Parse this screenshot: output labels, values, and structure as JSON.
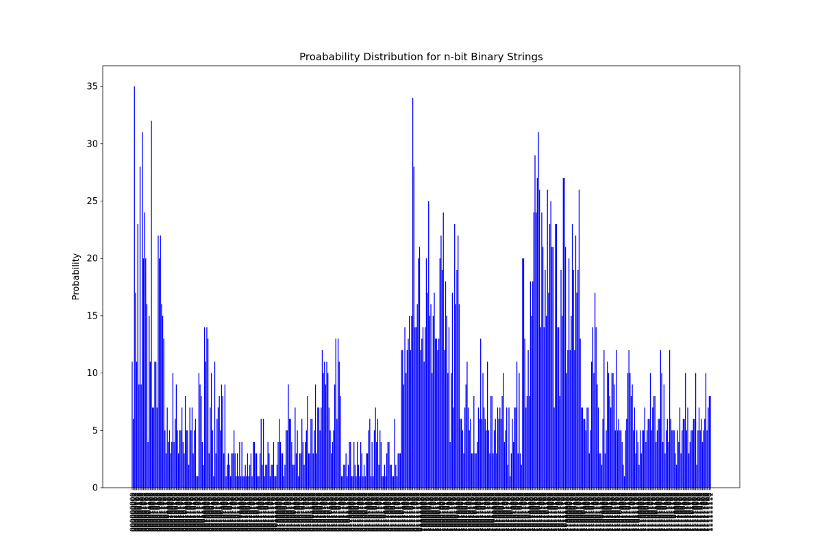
{
  "chart_data": {
    "type": "bar",
    "title": "Proabability Distribution for n-bit Binary Strings",
    "ylabel": "Probability",
    "color": "blue",
    "ylim": [
      0,
      36.8
    ],
    "yticks": [
      0,
      5,
      10,
      15,
      20,
      25,
      30,
      35
    ],
    "grid": false,
    "categories": [
      "000000000",
      "000000001",
      "000000010",
      "000000011",
      "000000100",
      "000000101",
      "000000110",
      "000000111",
      "000001000",
      "000001001",
      "000001010",
      "000001011",
      "000001100",
      "000001101",
      "000001110",
      "000001111",
      "000010000",
      "000010001",
      "000010010",
      "000010011",
      "000010100",
      "000010101",
      "000010110",
      "000010111",
      "000011000",
      "000011001",
      "000011010",
      "000011011",
      "000011100",
      "000011101",
      "000011110",
      "000011111",
      "000100000",
      "000100001",
      "000100010",
      "000100011",
      "000100100",
      "000100101",
      "000100110",
      "000100111",
      "000101000",
      "000101001",
      "000101010",
      "000101011",
      "000101100",
      "000101101",
      "000101110",
      "000101111",
      "000110000",
      "000110001",
      "000110010",
      "000110011",
      "000110100",
      "000110101",
      "000110110",
      "000110111",
      "000111000",
      "000111001",
      "000111010",
      "000111011",
      "000111100",
      "000111101",
      "000111110",
      "000111111",
      "001000000",
      "001000001",
      "001000010",
      "001000011",
      "001000100",
      "001000101",
      "001000110",
      "001000111",
      "001001000",
      "001001001",
      "001001010",
      "001001011",
      "001001100",
      "001001101",
      "001001110",
      "001001111",
      "001010000",
      "001010001",
      "001010010",
      "001010011",
      "001010100",
      "001010101",
      "001010110",
      "001010111",
      "001011000",
      "001011001",
      "001011010",
      "001011011",
      "001011100",
      "001011101",
      "001011110",
      "001011111",
      "001100000",
      "001100001",
      "001100010",
      "001100011",
      "001100100",
      "001100101",
      "001100110",
      "001100111",
      "001101000",
      "001101001",
      "001101010",
      "001101011",
      "001101100",
      "001101101",
      "001101110",
      "001101111",
      "001110000",
      "001110001",
      "001110010",
      "001110011",
      "001110100",
      "001110101",
      "001110110",
      "001110111",
      "001111000",
      "001111001",
      "001111010",
      "001111011",
      "001111100",
      "001111101",
      "001111110",
      "001111111",
      "010000000",
      "010000001",
      "010000010",
      "010000011",
      "010000100",
      "010000101",
      "010000110",
      "010000111",
      "010001000",
      "010001001",
      "010001010",
      "010001011",
      "010001100",
      "010001101",
      "010001110",
      "010001111",
      "010010000",
      "010010001",
      "010010010",
      "010010011",
      "010010100",
      "010010101",
      "010010110",
      "010010111",
      "010011000",
      "010011001",
      "010011010",
      "010011011",
      "010011100",
      "010011101",
      "010011110",
      "010011111",
      "010100000",
      "010100001",
      "010100010",
      "010100011",
      "010100100",
      "010100101",
      "010100110",
      "010100111",
      "010101000",
      "010101001",
      "010101010",
      "010101011",
      "010101100",
      "010101101",
      "010101110",
      "010101111",
      "010110000",
      "010110001",
      "010110010",
      "010110011",
      "010110100",
      "010110101",
      "010110110",
      "010110111",
      "010111000",
      "010111001",
      "010111010",
      "010111011",
      "010111100",
      "010111101",
      "010111110",
      "010111111",
      "011000000",
      "011000001",
      "011000010",
      "011000011",
      "011000100",
      "011000101",
      "011000110",
      "011000111",
      "011001000",
      "011001001",
      "011001010",
      "011001011",
      "011001100",
      "011001101",
      "011001110",
      "011001111",
      "011010000",
      "011010001",
      "011010010",
      "011010011",
      "011010100",
      "011010101",
      "011010110",
      "011010111",
      "011011000",
      "011011001",
      "011011010",
      "011011011",
      "011011100",
      "011011101",
      "011011110",
      "011011111",
      "011100000",
      "011100001",
      "011100010",
      "011100011",
      "011100100",
      "011100101",
      "011100110",
      "011100111",
      "011101000",
      "011101001",
      "011101010",
      "011101011",
      "011101100",
      "011101101",
      "011101110",
      "011101111",
      "011110000",
      "011110001",
      "011110010",
      "011110011",
      "011110100",
      "011110101",
      "011110110",
      "011110111",
      "011111000",
      "011111001",
      "011111010",
      "011111011",
      "011111100",
      "011111101",
      "011111110",
      "011111111",
      "100000000",
      "100000001",
      "100000010",
      "100000011",
      "100000100",
      "100000101",
      "100000110",
      "100000111",
      "100001000",
      "100001001",
      "100001010",
      "100001011",
      "100001100",
      "100001101",
      "100001110",
      "100001111",
      "100010000",
      "100010001",
      "100010010",
      "100010011",
      "100010100",
      "100010101",
      "100010110",
      "100010111",
      "100011000",
      "100011001",
      "100011010",
      "100011011",
      "100011100",
      "100011101",
      "100011110",
      "100011111",
      "100100000",
      "100100001",
      "100100010",
      "100100011",
      "100100100",
      "100100101",
      "100100110",
      "100100111",
      "100101000",
      "100101001",
      "100101010",
      "100101011",
      "100101100",
      "100101101",
      "100101110",
      "100101111",
      "100110000",
      "100110001",
      "100110010",
      "100110011",
      "100110100",
      "100110101",
      "100110110",
      "100110111",
      "100111000",
      "100111001",
      "100111010",
      "100111011",
      "100111100",
      "100111101",
      "100111110",
      "100111111",
      "101000000",
      "101000001",
      "101000010",
      "101000011",
      "101000100",
      "101000101",
      "101000110",
      "101000111",
      "101001000",
      "101001001",
      "101001010",
      "101001011",
      "101001100",
      "101001101",
      "101001110",
      "101001111",
      "101010000",
      "101010001",
      "101010010",
      "101010011",
      "101010100",
      "101010101",
      "101010110",
      "101010111",
      "101011000",
      "101011001",
      "101011010",
      "101011011",
      "101011100",
      "101011101",
      "101011110",
      "101011111",
      "101100000",
      "101100001",
      "101100010",
      "101100011",
      "101100100",
      "101100101",
      "101100110",
      "101100111",
      "101101000",
      "101101001",
      "101101010",
      "101101011",
      "101101100",
      "101101101",
      "101101110",
      "101101111",
      "101110000",
      "101110001",
      "101110010",
      "101110011",
      "101110100",
      "101110101",
      "101110110",
      "101110111",
      "101111000",
      "101111001",
      "101111010",
      "101111011",
      "101111100",
      "101111101",
      "101111110",
      "101111111",
      "110000000",
      "110000001",
      "110000010",
      "110000011",
      "110000100",
      "110000101",
      "110000110",
      "110000111",
      "110001000",
      "110001001",
      "110001010",
      "110001011",
      "110001100",
      "110001101",
      "110001110",
      "110001111",
      "110010000",
      "110010001",
      "110010010",
      "110010011",
      "110010100",
      "110010101",
      "110010110",
      "110010111",
      "110011000",
      "110011001",
      "110011010",
      "110011011",
      "110011100",
      "110011101",
      "110011110",
      "110011111",
      "110100000",
      "110100001",
      "110100010",
      "110100011",
      "110100100",
      "110100101",
      "110100110",
      "110100111",
      "110101000",
      "110101001",
      "110101010",
      "110101011",
      "110101100",
      "110101101",
      "110101110",
      "110101111",
      "110110000",
      "110110001",
      "110110010",
      "110110011",
      "110110100",
      "110110101",
      "110110110",
      "110110111",
      "110111000",
      "110111001",
      "110111010",
      "110111011",
      "110111100",
      "110111101",
      "110111110",
      "110111111",
      "111000000",
      "111000001",
      "111000010",
      "111000011",
      "111000100",
      "111000101",
      "111000110",
      "111000111",
      "111001000",
      "111001001",
      "111001010",
      "111001011",
      "111001100",
      "111001101",
      "111001110",
      "111001111",
      "111010000",
      "111010001",
      "111010010",
      "111010011",
      "111010100",
      "111010101",
      "111010110",
      "111010111",
      "111011000",
      "111011001",
      "111011010",
      "111011011",
      "111011100",
      "111011101",
      "111011110",
      "111011111",
      "111100000",
      "111100001",
      "111100010",
      "111100011",
      "111100100",
      "111100101",
      "111100110",
      "111100111",
      "111101000",
      "111101001",
      "111101010",
      "111101011",
      "111101100",
      "111101101",
      "111101110",
      "111101111",
      "111110000",
      "111110001",
      "111110010",
      "111110011",
      "111110100",
      "111110101",
      "111110110",
      "111110111",
      "111111000",
      "111111001",
      "111111010",
      "111111011",
      "111111100",
      "111111101",
      "111111110",
      "111111111"
    ],
    "values": [
      11,
      6,
      35,
      17,
      11,
      23,
      9,
      28,
      9,
      31,
      20,
      24,
      20,
      16,
      4,
      15,
      11,
      32,
      7,
      7,
      11,
      11,
      7,
      22,
      20,
      22,
      16,
      15,
      13,
      5,
      3,
      7,
      4,
      5,
      3,
      4,
      10,
      4,
      6,
      9,
      5,
      3,
      5,
      5,
      7,
      4,
      3,
      8,
      5,
      5,
      2,
      7,
      5,
      7,
      3,
      5,
      6,
      1,
      1,
      10,
      9,
      8,
      4,
      2,
      14,
      11,
      14,
      13,
      3,
      7,
      10,
      5,
      1,
      11,
      3,
      6,
      7,
      8,
      5,
      9,
      8,
      3,
      9,
      1,
      2,
      3,
      2,
      1,
      3,
      3,
      5,
      3,
      1,
      3,
      1,
      4,
      1,
      4,
      1,
      1,
      2,
      1,
      3,
      1,
      2,
      3,
      1,
      4,
      4,
      3,
      3,
      1,
      1,
      3,
      6,
      2,
      6,
      1,
      2,
      2,
      4,
      3,
      1,
      2,
      2,
      4,
      1,
      1,
      2,
      4,
      6,
      4,
      3,
      3,
      1,
      2,
      5,
      5,
      9,
      6,
      6,
      4,
      2,
      2,
      7,
      3,
      5,
      1,
      3,
      3,
      6,
      4,
      2,
      4,
      5,
      8,
      3,
      3,
      6,
      6,
      3,
      5,
      9,
      3,
      7,
      7,
      5,
      7,
      12,
      10,
      11,
      9,
      11,
      10,
      7,
      5,
      3,
      4,
      5,
      9,
      13,
      6,
      13,
      11,
      8,
      1,
      1,
      2,
      2,
      3,
      1,
      2,
      4,
      4,
      1,
      1,
      4,
      2,
      1,
      4,
      2,
      1,
      4,
      3,
      1,
      2,
      1,
      3,
      3,
      5,
      6,
      1,
      4,
      1,
      5,
      7,
      4,
      6,
      2,
      5,
      4,
      1,
      1,
      2,
      1,
      3,
      4,
      4,
      2,
      2,
      1,
      1,
      6,
      2,
      1,
      3,
      3,
      3,
      12,
      12,
      9,
      14,
      10,
      12,
      13,
      15,
      12,
      15,
      34,
      28,
      14,
      14,
      16,
      20,
      21,
      12,
      13,
      14,
      11,
      14,
      20,
      17,
      25,
      15,
      16,
      10,
      15,
      17,
      13,
      13,
      12,
      13,
      20,
      22,
      19,
      24,
      12,
      18,
      15,
      10,
      14,
      4,
      10,
      17,
      7,
      23,
      16,
      19,
      22,
      16,
      6,
      6,
      5,
      3,
      7,
      9,
      11,
      7,
      5,
      6,
      3,
      3,
      8,
      3,
      3,
      4,
      7,
      6,
      13,
      6,
      10,
      7,
      6,
      5,
      11,
      5,
      3,
      8,
      8,
      3,
      5,
      6,
      3,
      7,
      6,
      7,
      6,
      8,
      10,
      4,
      5,
      7,
      2,
      7,
      1,
      3,
      6,
      4,
      7,
      7,
      11,
      3,
      10,
      3,
      2,
      20,
      20,
      13,
      7,
      8,
      12,
      8,
      18,
      15,
      18,
      24,
      29,
      24,
      27,
      31,
      26,
      14,
      24,
      21,
      14,
      19,
      15,
      26,
      17,
      23,
      25,
      21,
      21,
      7,
      23,
      23,
      14,
      14,
      8,
      19,
      15,
      27,
      27,
      21,
      10,
      12,
      20,
      12,
      15,
      23,
      19,
      12,
      22,
      17,
      19,
      26,
      13,
      7,
      7,
      6,
      6,
      5,
      7,
      7,
      3,
      5,
      11,
      14,
      10,
      17,
      14,
      9,
      7,
      3,
      3,
      2,
      6,
      12,
      3,
      5,
      11,
      10,
      8,
      7,
      10,
      10,
      9,
      5,
      12,
      5,
      6,
      5,
      5,
      4,
      2,
      1,
      5,
      6,
      10,
      12,
      10,
      8,
      9,
      5,
      7,
      3,
      5,
      4,
      2,
      5,
      3,
      5,
      5,
      7,
      4,
      5,
      6,
      6,
      10,
      5,
      7,
      8,
      8,
      4,
      5,
      6,
      6,
      12,
      10,
      4,
      9,
      3,
      5,
      6,
      4,
      12,
      6,
      5,
      5,
      5,
      3,
      2,
      5,
      4,
      7,
      3,
      5,
      6,
      6,
      10,
      5,
      7,
      3,
      4,
      5,
      5,
      6,
      6,
      10,
      2,
      5,
      7,
      5,
      6,
      4,
      5,
      6,
      10,
      5,
      7,
      8,
      8
    ]
  }
}
